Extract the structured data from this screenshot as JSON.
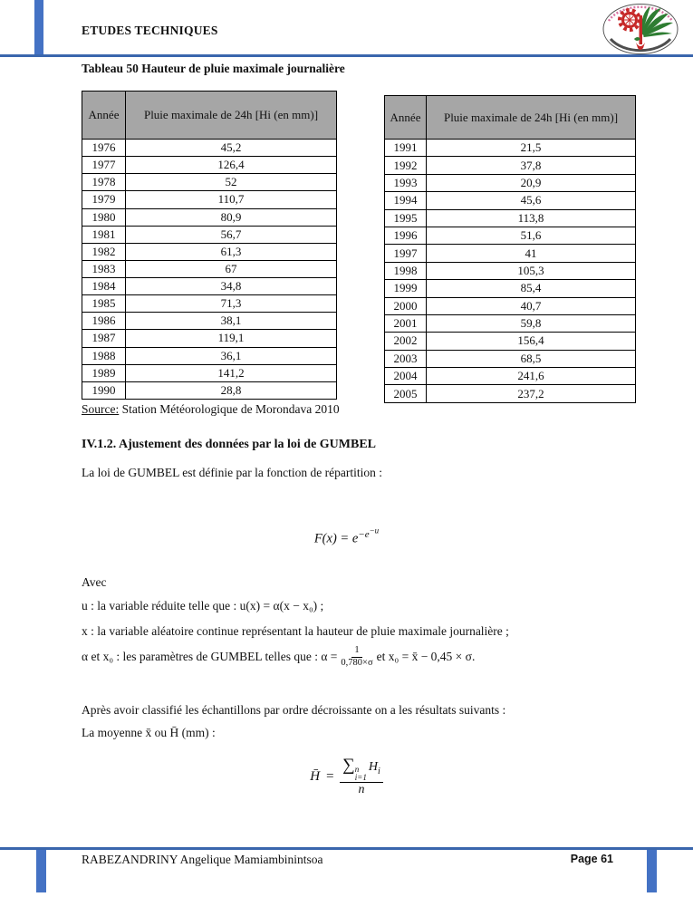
{
  "header": {
    "title": "ETUDES TECHNIQUES",
    "logo_name": "university-emblem"
  },
  "table_caption": "Tableau 50 Hauteur de pluie maximale journalière",
  "tables": {
    "columns": [
      "Année",
      "Pluie maximale de 24h [Hi (en mm)]"
    ],
    "left": {
      "rows": [
        [
          "1976",
          "45,2"
        ],
        [
          "1977",
          "126,4"
        ],
        [
          "1978",
          "52"
        ],
        [
          "1979",
          "110,7"
        ],
        [
          "1980",
          "80,9"
        ],
        [
          "1981",
          "56,7"
        ],
        [
          "1982",
          "61,3"
        ],
        [
          "1983",
          "67"
        ],
        [
          "1984",
          "34,8"
        ],
        [
          "1985",
          "71,3"
        ],
        [
          "1986",
          "38,1"
        ],
        [
          "1987",
          "119,1"
        ],
        [
          "1988",
          "36,1"
        ],
        [
          "1989",
          "141,2"
        ],
        [
          "1990",
          "28,8"
        ]
      ]
    },
    "right": {
      "rows": [
        [
          "1991",
          "21,5"
        ],
        [
          "1992",
          "37,8"
        ],
        [
          "1993",
          "20,9"
        ],
        [
          "1994",
          "45,6"
        ],
        [
          "1995",
          "113,8"
        ],
        [
          "1996",
          "51,6"
        ],
        [
          "1997",
          "41"
        ],
        [
          "1998",
          "105,3"
        ],
        [
          "1999",
          "85,4"
        ],
        [
          "2000",
          "40,7"
        ],
        [
          "2001",
          "59,8"
        ],
        [
          "2002",
          "156,4"
        ],
        [
          "2003",
          "68,5"
        ],
        [
          "2004",
          "241,6"
        ],
        [
          "2005",
          "237,2"
        ]
      ]
    }
  },
  "source": {
    "label": "Source:",
    "text": " Station Météorologique de Morondava 2010"
  },
  "section": {
    "heading": "IV.1.2. Ajustement des données par la loi de GUMBEL",
    "intro": "La loi de GUMBEL est définie par la fonction de répartition :",
    "formula_fx": {
      "lhs": "F(x) =  ",
      "base": "e",
      "exp_base": "−e",
      "exp_sup": "−u"
    },
    "avec": "Avec",
    "def_u": "u : la variable réduite telle que : u(x) =  α(x − x₀) ;",
    "def_x": "x : la variable aléatoire continue représentant la hauteur de pluie maximale journalière ;",
    "def_alpha": {
      "before": "α et x₀ : les paramètres de GUMBEL telles que : α = ",
      "num": "1",
      "den": "0,780×σ",
      "after": " et x₀ = x̄ − 0,45 × σ."
    },
    "apres": "Après avoir classifié les échantillons par ordre décroissante on a les résultats suivants :",
    "moyenne": "La moyenne x̄ ou H̄ (mm) :",
    "formula_mean": {
      "lhs": "H̄",
      "eq": " = ",
      "sum": "∑",
      "sum_sup": "n",
      "sum_sub": "i=1",
      "num_var": "H",
      "num_sub": "i",
      "den": "n"
    }
  },
  "footer": {
    "author": "RABEZANDRINY Angelique Mamiambinintsoa",
    "page": "Page 61"
  }
}
